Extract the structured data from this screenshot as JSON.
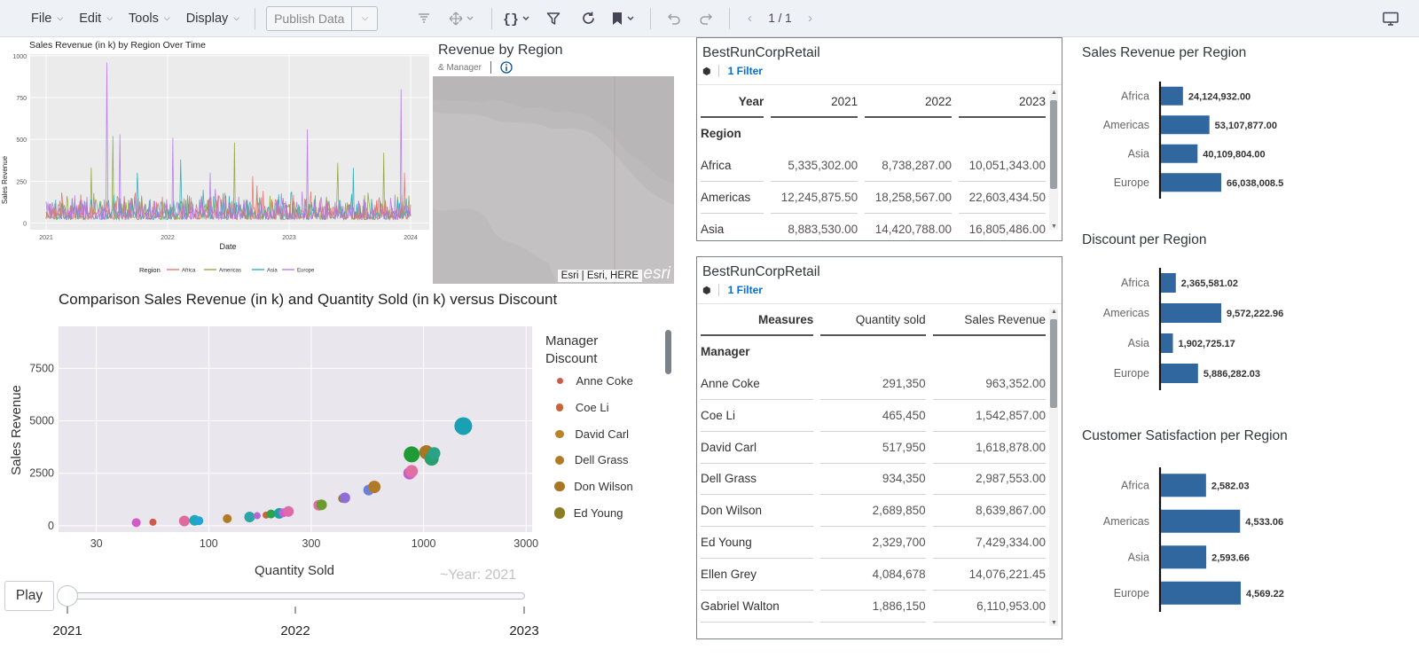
{
  "toolbar": {
    "menus": [
      "File",
      "Edit",
      "Tools",
      "Display"
    ],
    "publish_label": "Publish Data",
    "page_indicator": "1 / 1"
  },
  "ts_chart": {
    "title": "Sales Revenue (in k) by Region Over Time",
    "xlabel": "Date",
    "ylabel": "Sales Revenue",
    "yticks": [
      "0",
      "250",
      "500",
      "750",
      "1000"
    ],
    "xticks": [
      "2021",
      "2022",
      "2023",
      "2024"
    ],
    "legend_title": "Region",
    "legend": [
      "Africa",
      "Americas",
      "Asia",
      "Europe"
    ],
    "colors": [
      "#e4706a",
      "#8da33a",
      "#27a9b7",
      "#b277e6"
    ]
  },
  "map": {
    "title": "Revenue by Region",
    "subtitle": "& Manager",
    "attribution": "Esri | Esri, HERE",
    "logo": "esri"
  },
  "scatter": {
    "title": "Comparison Sales Revenue (in k) and Quantity Sold (in k) versus Discount",
    "xlabel": "Quantity Sold",
    "ylabel": "Sales Revenue",
    "xticks": [
      "30",
      "100",
      "300",
      "1000",
      "3000"
    ],
    "yticks": [
      "0",
      "2500",
      "5000",
      "7500"
    ],
    "legend_title_1": "Manager",
    "legend_title_2": "Discount",
    "legend": [
      {
        "name": "Anne Coke",
        "color": "#d1594c"
      },
      {
        "name": "Coe Li",
        "color": "#c8643a"
      },
      {
        "name": "David Carl",
        "color": "#b9832c"
      },
      {
        "name": "Dell Grass",
        "color": "#b07a27"
      },
      {
        "name": "Don Wilson",
        "color": "#ab7526"
      },
      {
        "name": "Ed Young",
        "color": "#8c7d22"
      }
    ],
    "year_label": "~Year: 2021",
    "play_label": "Play",
    "slider_ticks": [
      "2021",
      "2022",
      "2023"
    ]
  },
  "chart_data": [
    {
      "type": "scatter",
      "title": "Comparison Sales Revenue (in k) and Quantity Sold (in k) versus Discount",
      "xlabel": "Quantity Sold",
      "ylabel": "Sales Revenue",
      "x_scale": "log",
      "xlim": [
        20,
        3200
      ],
      "ylim": [
        -300,
        9500
      ],
      "points": [
        {
          "x": 46,
          "y": 150,
          "color": "#d25acb",
          "s": 5
        },
        {
          "x": 55,
          "y": 170,
          "color": "#d1594c",
          "s": 4
        },
        {
          "x": 77,
          "y": 230,
          "color": "#e06aa0",
          "s": 6
        },
        {
          "x": 86,
          "y": 260,
          "color": "#1fa8b5",
          "s": 6
        },
        {
          "x": 90,
          "y": 240,
          "color": "#24a4d6",
          "s": 5
        },
        {
          "x": 122,
          "y": 340,
          "color": "#b07a27",
          "s": 5
        },
        {
          "x": 155,
          "y": 420,
          "color": "#2ba5a8",
          "s": 6
        },
        {
          "x": 168,
          "y": 480,
          "color": "#b766d4",
          "s": 4
        },
        {
          "x": 185,
          "y": 510,
          "color": "#c8643a",
          "s": 4
        },
        {
          "x": 195,
          "y": 560,
          "color": "#2aa44a",
          "s": 5
        },
        {
          "x": 213,
          "y": 590,
          "color": "#1c9ea2",
          "s": 6
        },
        {
          "x": 222,
          "y": 620,
          "color": "#c760d2",
          "s": 5
        },
        {
          "x": 235,
          "y": 680,
          "color": "#de6aa8",
          "s": 6
        },
        {
          "x": 325,
          "y": 980,
          "color": "#e06fa4",
          "s": 6
        },
        {
          "x": 335,
          "y": 1000,
          "color": "#6a9b2e",
          "s": 6
        },
        {
          "x": 420,
          "y": 1300,
          "color": "#8c7d22",
          "s": 5
        },
        {
          "x": 430,
          "y": 1330,
          "color": "#8e6dd6",
          "s": 6
        },
        {
          "x": 555,
          "y": 1700,
          "color": "#6d7fd6",
          "s": 6
        },
        {
          "x": 590,
          "y": 1850,
          "color": "#b07a27",
          "s": 7
        },
        {
          "x": 860,
          "y": 2500,
          "color": "#c65fcd",
          "s": 7
        },
        {
          "x": 880,
          "y": 2600,
          "color": "#e06fa4",
          "s": 7
        },
        {
          "x": 880,
          "y": 3400,
          "color": "#1f9a35",
          "s": 9
        },
        {
          "x": 1030,
          "y": 3500,
          "color": "#ab7526",
          "s": 8
        },
        {
          "x": 1090,
          "y": 3200,
          "color": "#2a9f6d",
          "s": 8
        },
        {
          "x": 1120,
          "y": 3450,
          "color": "#28a38a",
          "s": 7
        },
        {
          "x": 1530,
          "y": 4750,
          "color": "#1aa0b4",
          "s": 10
        }
      ]
    },
    {
      "type": "bar",
      "orientation": "horizontal",
      "title": "Sales Revenue per Region",
      "categories": [
        "Africa",
        "Americas",
        "Asia",
        "Europe"
      ],
      "values": [
        24124932.0,
        53107877.0,
        40109804.0,
        66038008.5
      ],
      "labels": [
        "24,124,932.00",
        "53,107,877.00",
        "40,109,804.00",
        "66,038,008.5"
      ],
      "color": "#31679f"
    },
    {
      "type": "bar",
      "orientation": "horizontal",
      "title": "Discount per Region",
      "categories": [
        "Africa",
        "Americas",
        "Asia",
        "Europe"
      ],
      "values": [
        2365581.02,
        9572222.96,
        1902725.17,
        5886282.03
      ],
      "labels": [
        "2,365,581.02",
        "9,572,222.96",
        "1,902,725.17",
        "5,886,282.03"
      ],
      "color": "#31679f"
    },
    {
      "type": "bar",
      "orientation": "horizontal",
      "title": "Customer Satisfaction per Region",
      "categories": [
        "Africa",
        "Americas",
        "Asia",
        "Europe"
      ],
      "values": [
        2582.03,
        4533.06,
        2593.66,
        4569.22
      ],
      "labels": [
        "2,582.03",
        "4,533.06",
        "2,593.66",
        "4,569.22"
      ],
      "color": "#31679f"
    }
  ],
  "table1": {
    "title": "BestRunCorpRetail",
    "filter": "1 Filter",
    "header": [
      "Year",
      "2021",
      "2022",
      "2023"
    ],
    "dim_header": "Region",
    "rows": [
      [
        "Africa",
        "5,335,302.00",
        "8,738,287.00",
        "10,051,343.00"
      ],
      [
        "Americas",
        "12,245,875.50",
        "18,258,567.00",
        "22,603,434.50"
      ],
      [
        "Asia",
        "8,883,530.00",
        "14,420,788.00",
        "16,805,486.00"
      ]
    ]
  },
  "table2": {
    "title": "BestRunCorpRetail",
    "filter": "1 Filter",
    "header": [
      "Measures",
      "Quantity sold",
      "Sales Revenue"
    ],
    "dim_header": "Manager",
    "rows": [
      [
        "Anne Coke",
        "291,350",
        "963,352.00"
      ],
      [
        "Coe Li",
        "465,450",
        "1,542,857.00"
      ],
      [
        "David Carl",
        "517,950",
        "1,618,878.00"
      ],
      [
        "Dell Grass",
        "934,350",
        "2,987,553.00"
      ],
      [
        "Don Wilson",
        "2,689,850",
        "8,639,867.00"
      ],
      [
        "Ed Young",
        "2,329,700",
        "7,429,334.00"
      ],
      [
        "Ellen Grey",
        "4,084,678",
        "14,076,221.45"
      ],
      [
        "Gabriel Walton",
        "1,886,150",
        "6,110,953.00"
      ]
    ]
  }
}
